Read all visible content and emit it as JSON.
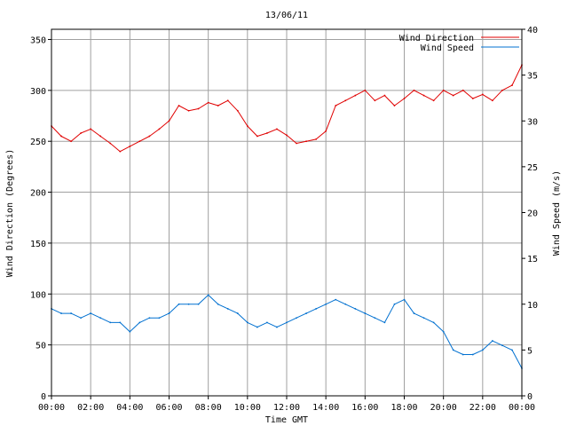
{
  "chart_data": {
    "type": "line",
    "title": "13/06/11",
    "xlabel": "Time GMT",
    "ylabel_left": "Wind Direction (Degrees)",
    "ylabel_right": "Wind Speed (m/s)",
    "x_ticks": [
      "00:00",
      "02:00",
      "04:00",
      "06:00",
      "08:00",
      "10:00",
      "12:00",
      "14:00",
      "16:00",
      "18:00",
      "20:00",
      "22:00",
      "00:00"
    ],
    "xlim_hours": [
      0,
      24
    ],
    "ylim_left": [
      0,
      360
    ],
    "yticks_left": [
      0,
      50,
      100,
      150,
      200,
      250,
      300,
      350
    ],
    "ylim_right": [
      0,
      40
    ],
    "yticks_right": [
      0,
      5,
      10,
      15,
      20,
      25,
      30,
      35,
      40
    ],
    "grid": true,
    "legend_position": "top-right",
    "series": [
      {
        "name": "Wind Direction",
        "axis": "left",
        "color": "#e00000",
        "x": [
          0,
          0.5,
          1,
          1.5,
          2,
          2.5,
          3,
          3.5,
          4,
          4.5,
          5,
          5.5,
          6,
          6.5,
          7,
          7.5,
          8,
          8.5,
          9,
          9.5,
          10,
          10.5,
          11,
          11.5,
          12,
          12.5,
          13,
          13.5,
          14,
          14.5,
          15,
          15.5,
          16,
          16.5,
          17,
          17.5,
          18,
          18.5,
          19,
          19.5,
          20,
          20.5,
          21,
          21.5,
          22,
          22.5,
          23,
          23.5,
          24
        ],
        "values": [
          265,
          255,
          250,
          258,
          262,
          255,
          248,
          240,
          245,
          250,
          255,
          262,
          270,
          285,
          280,
          282,
          288,
          285,
          290,
          280,
          265,
          255,
          258,
          262,
          256,
          248,
          250,
          252,
          260,
          285,
          290,
          295,
          300,
          290,
          295,
          285,
          292,
          300,
          295,
          290,
          300,
          295,
          300,
          292,
          296,
          290,
          300,
          305,
          325
        ]
      },
      {
        "name": "Wind Speed",
        "axis": "right",
        "color": "#0070d0",
        "x": [
          0,
          0.5,
          1,
          1.5,
          2,
          2.5,
          3,
          3.5,
          4,
          4.5,
          5,
          5.5,
          6,
          6.5,
          7,
          7.5,
          8,
          8.5,
          9,
          9.5,
          10,
          10.5,
          11,
          11.5,
          12,
          12.5,
          13,
          13.5,
          14,
          14.5,
          15,
          15.5,
          16,
          16.5,
          17,
          17.5,
          18,
          18.5,
          19,
          19.5,
          20,
          20.5,
          21,
          21.5,
          22,
          22.5,
          23,
          23.5,
          24
        ],
        "values": [
          9.5,
          9,
          9,
          8.5,
          9,
          8.5,
          8,
          8,
          7,
          8,
          8.5,
          8.5,
          9,
          10,
          10,
          10,
          11,
          10,
          9.5,
          9,
          8,
          7.5,
          8,
          7.5,
          8,
          8.5,
          9,
          9.5,
          10,
          10.5,
          10,
          9.5,
          9,
          8.5,
          8,
          10,
          10.5,
          9,
          8.5,
          8,
          7,
          5,
          4.5,
          4.5,
          5,
          6,
          5.5,
          5,
          3
        ]
      }
    ]
  }
}
